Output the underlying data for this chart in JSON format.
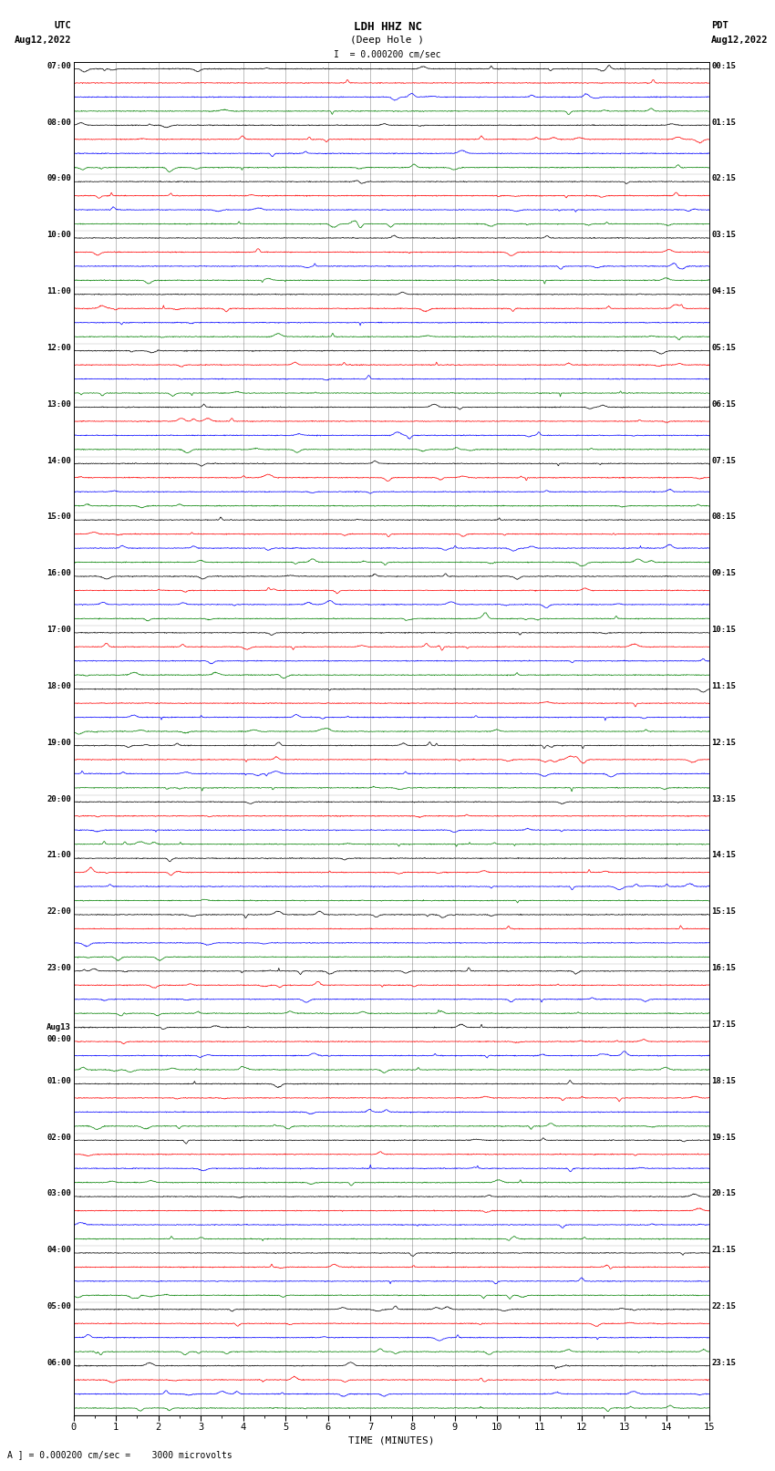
{
  "title_line1": "LDH HHZ NC",
  "title_line2": "(Deep Hole )",
  "scale_label": "I  = 0.000200 cm/sec",
  "footer_label": "A ] = 0.000200 cm/sec =    3000 microvolts",
  "utc_label": "UTC",
  "utc_date": "Aug12,2022",
  "pdt_label": "PDT",
  "pdt_date": "Aug12,2022",
  "xlabel": "TIME (MINUTES)",
  "left_times_utc": [
    "07:00",
    "08:00",
    "09:00",
    "10:00",
    "11:00",
    "12:00",
    "13:00",
    "14:00",
    "15:00",
    "16:00",
    "17:00",
    "18:00",
    "19:00",
    "20:00",
    "21:00",
    "22:00",
    "23:00",
    "Aug13\n00:00",
    "01:00",
    "02:00",
    "03:00",
    "04:00",
    "05:00",
    "06:00"
  ],
  "right_times_pdt": [
    "00:15",
    "01:15",
    "02:15",
    "03:15",
    "04:15",
    "05:15",
    "06:15",
    "07:15",
    "08:15",
    "09:15",
    "10:15",
    "11:15",
    "12:15",
    "13:15",
    "14:15",
    "15:15",
    "16:15",
    "17:15",
    "18:15",
    "19:15",
    "20:15",
    "21:15",
    "22:15",
    "23:15"
  ],
  "colors": [
    "black",
    "red",
    "blue",
    "green"
  ],
  "num_row_groups": 24,
  "background_color": "white",
  "x_ticks": [
    0,
    1,
    2,
    3,
    4,
    5,
    6,
    7,
    8,
    9,
    10,
    11,
    12,
    13,
    14,
    15
  ],
  "x_lim": [
    0,
    15
  ],
  "fig_width": 8.5,
  "fig_height": 16.13
}
